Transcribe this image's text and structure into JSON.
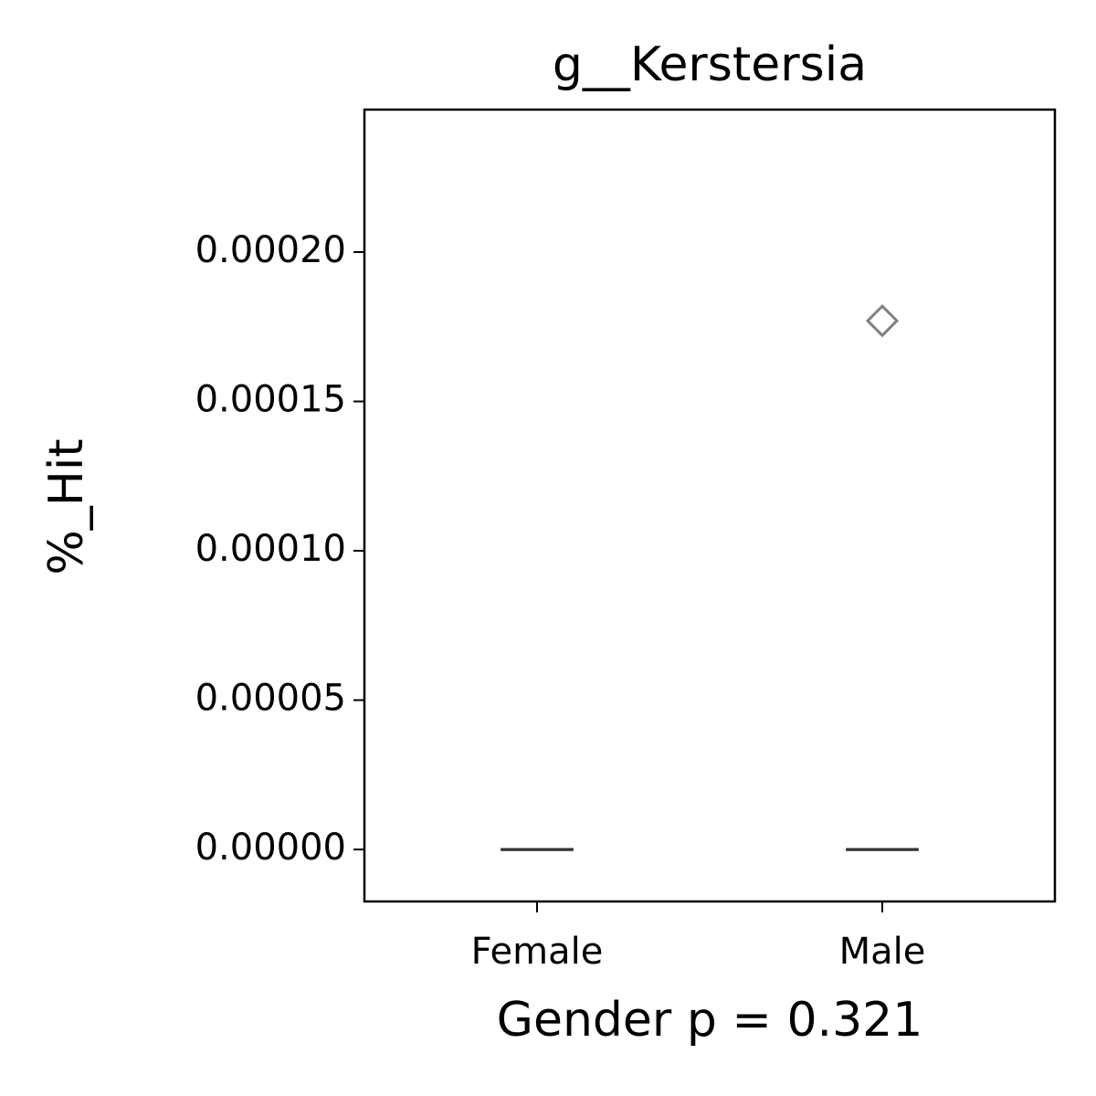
{
  "chart_data": {
    "type": "box",
    "title": "g__Kerstersia",
    "xlabel": "Gender p = 0.321",
    "ylabel": "%_Hit",
    "categories": [
      "Female",
      "Male"
    ],
    "boxes": [
      {
        "whisker_low": 0,
        "q1": 0,
        "median": 0,
        "q3": 0,
        "whisker_high": 0
      },
      {
        "whisker_low": 0,
        "q1": 0,
        "median": 0,
        "q3": 0,
        "whisker_high": 0,
        "outliers": [
          0.000177
        ]
      }
    ],
    "color": "#333333",
    "outlier_color": "#808080",
    "ylim": [
      -1.74e-05,
      0.0002477
    ],
    "yticks": [
      {
        "value": 0,
        "label": "0.00000"
      },
      {
        "value": 5e-05,
        "label": "0.00005"
      },
      {
        "value": 0.0001,
        "label": "0.00010"
      },
      {
        "value": 0.00015,
        "label": "0.00015"
      },
      {
        "value": 0.0002,
        "label": "0.00020"
      }
    ]
  }
}
